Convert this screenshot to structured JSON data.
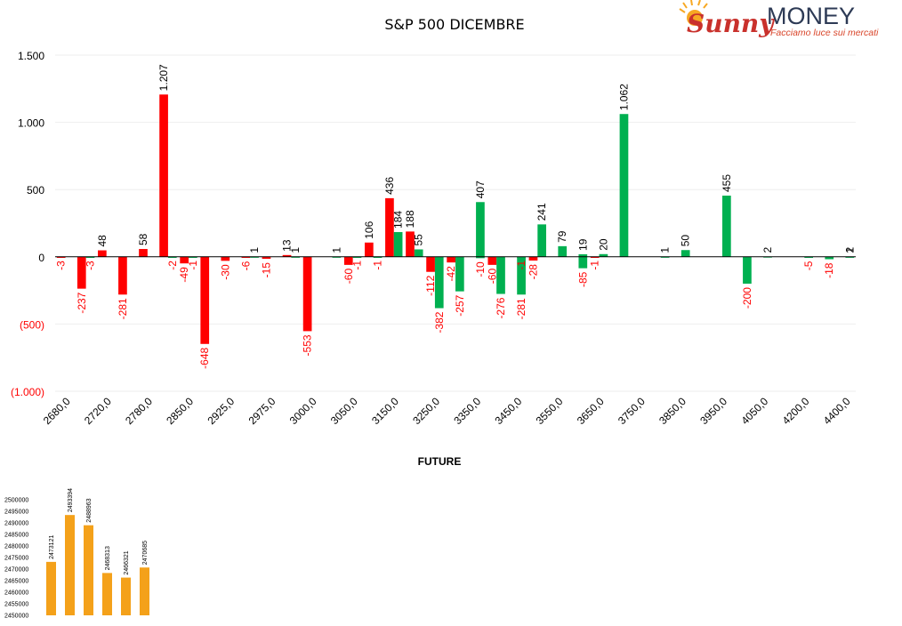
{
  "logo": {
    "brand_script": "Sunny",
    "brand_word": "MONEY",
    "tagline": "Facciamo luce sui mercati"
  },
  "colors": {
    "positive": "#00b050",
    "negative": "#ff0000",
    "future": "#f4a11a",
    "grid": "#eeeeee",
    "axis": "#000000"
  },
  "chart_data": [
    {
      "type": "bar",
      "title": "S&P 500 DICEMBRE",
      "ylim": [
        -1000,
        1500
      ],
      "yticks": [
        {
          "value": 1500,
          "label": "1.500"
        },
        {
          "value": 1000,
          "label": "1.000"
        },
        {
          "value": 500,
          "label": "500"
        },
        {
          "value": 0,
          "label": "0"
        },
        {
          "value": -500,
          "label": "(500)"
        },
        {
          "value": -1000,
          "label": "(1.000)"
        }
      ],
      "grid": true,
      "slots": 39,
      "xticks": [
        {
          "slot": 0,
          "label": "2680,0"
        },
        {
          "slot": 2,
          "label": "2720,0"
        },
        {
          "slot": 4,
          "label": "2780,0"
        },
        {
          "slot": 6,
          "label": "2850,0"
        },
        {
          "slot": 8,
          "label": "2925,0"
        },
        {
          "slot": 10,
          "label": "2975,0"
        },
        {
          "slot": 12,
          "label": "3000,0"
        },
        {
          "slot": 14,
          "label": "3050,0"
        },
        {
          "slot": 16,
          "label": "3150,0"
        },
        {
          "slot": 18,
          "label": "3250,0"
        },
        {
          "slot": 20,
          "label": "3350,0"
        },
        {
          "slot": 22,
          "label": "3450,0"
        },
        {
          "slot": 24,
          "label": "3550,0"
        },
        {
          "slot": 26,
          "label": "3650,0"
        },
        {
          "slot": 28,
          "label": "3750,0"
        },
        {
          "slot": 30,
          "label": "3850,0"
        },
        {
          "slot": 32,
          "label": "3950,0"
        },
        {
          "slot": 34,
          "label": "4050,0"
        },
        {
          "slot": 36,
          "label": "4200,0"
        },
        {
          "slot": 38,
          "label": "4400,0"
        }
      ],
      "series": [
        {
          "color": "negative",
          "bars": [
            {
              "slot": 0,
              "value": -3,
              "label": "-3"
            },
            {
              "slot": 1,
              "value": -237,
              "label": "-237"
            },
            {
              "slot": 2,
              "value": 48,
              "label": "48"
            },
            {
              "slot": 3,
              "value": -281,
              "label": "-281"
            },
            {
              "slot": 4,
              "value": 58,
              "label": "58"
            },
            {
              "slot": 5,
              "value": 1207,
              "label": "1.207"
            },
            {
              "slot": 6,
              "value": -49,
              "label": "-49"
            },
            {
              "slot": 7,
              "value": -648,
              "label": "-648"
            },
            {
              "slot": 8,
              "value": -30,
              "label": "-30"
            },
            {
              "slot": 9,
              "value": -6,
              "label": "-6"
            },
            {
              "slot": 10,
              "value": -15,
              "label": "-15"
            },
            {
              "slot": 11,
              "value": 13,
              "label": "13"
            },
            {
              "slot": 12,
              "value": -553,
              "label": "-553"
            },
            {
              "slot": 14,
              "value": -60,
              "label": "-60"
            },
            {
              "slot": 15,
              "value": 106,
              "label": "106"
            },
            {
              "slot": 16,
              "value": 436,
              "label": "436"
            },
            {
              "slot": 17,
              "value": 188,
              "label": "188"
            },
            {
              "slot": 18,
              "value": -112,
              "label": "-112"
            },
            {
              "slot": 19,
              "value": -42,
              "label": "-42"
            },
            {
              "slot": 21,
              "value": -60,
              "label": "-60"
            },
            {
              "slot": 23,
              "value": -28,
              "label": "-28"
            },
            {
              "slot": 26,
              "value": -1,
              "label": "-1"
            }
          ]
        },
        {
          "color": "positive",
          "bars": [
            {
              "slot": 1,
              "value": -3,
              "label": "-3"
            },
            {
              "slot": 5,
              "value": -2,
              "label": "-2"
            },
            {
              "slot": 6,
              "value": -1,
              "label": "-1"
            },
            {
              "slot": 9,
              "value": 1,
              "label": "1"
            },
            {
              "slot": 11,
              "value": 1,
              "label": "1"
            },
            {
              "slot": 13,
              "value": 1,
              "label": "1"
            },
            {
              "slot": 14,
              "value": -1,
              "label": "-1"
            },
            {
              "slot": 15,
              "value": -1,
              "label": "-1"
            },
            {
              "slot": 16,
              "value": 184,
              "label": "184"
            },
            {
              "slot": 17,
              "value": 55,
              "label": "55"
            },
            {
              "slot": 18,
              "value": -382,
              "label": "-382"
            },
            {
              "slot": 19,
              "value": -257,
              "label": "-257"
            },
            {
              "slot": 20,
              "value": -10,
              "label": "-10"
            },
            {
              "slot": 20,
              "value": 407,
              "label": "407"
            },
            {
              "slot": 21,
              "value": -276,
              "label": "-276"
            },
            {
              "slot": 22,
              "value": -1,
              "label": "-1"
            },
            {
              "slot": 22,
              "value": -281,
              "label": "-281"
            },
            {
              "slot": 23,
              "value": 241,
              "label": "241"
            },
            {
              "slot": 24,
              "value": 79,
              "label": "79"
            },
            {
              "slot": 25,
              "value": 19,
              "label": "19"
            },
            {
              "slot": 25,
              "value": -85,
              "label": "-85"
            },
            {
              "slot": 26,
              "value": 20,
              "label": "20"
            },
            {
              "slot": 27,
              "value": 1062,
              "label": "1.062"
            },
            {
              "slot": 29,
              "value": 1,
              "label": "1"
            },
            {
              "slot": 30,
              "value": 50,
              "label": "50"
            },
            {
              "slot": 32,
              "value": 455,
              "label": "455"
            },
            {
              "slot": 33,
              "value": -200,
              "label": "-200"
            },
            {
              "slot": 34,
              "value": 2,
              "label": "2"
            },
            {
              "slot": 36,
              "value": -5,
              "label": "-5"
            },
            {
              "slot": 37,
              "value": -18,
              "label": "-18"
            },
            {
              "slot": 38,
              "value": 2,
              "label": "2"
            },
            {
              "slot": 38,
              "value": 1,
              "label": "1"
            }
          ]
        }
      ]
    },
    {
      "type": "bar",
      "title": "FUTURE",
      "ylim": [
        2450000,
        2500000
      ],
      "yticks": [
        "2450000",
        "2455000",
        "2460000",
        "2465000",
        "2470000",
        "2475000",
        "2480000",
        "2485000",
        "2490000",
        "2495000",
        "2500000"
      ],
      "values": [
        2473121,
        2493394,
        2488963,
        2468313,
        2466321,
        2470685
      ],
      "labels": [
        "2473121",
        "2493394",
        "2488963",
        "2468313",
        "2466321",
        "2470685"
      ],
      "color": "future"
    }
  ]
}
